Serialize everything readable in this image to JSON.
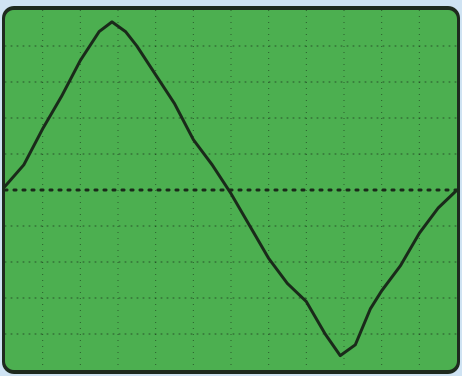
{
  "chart_data": {
    "type": "line",
    "x": [
      0,
      0.5,
      1,
      1.5,
      2,
      2.5,
      2.84,
      3.2,
      3.5,
      4,
      4.5,
      5,
      5.5,
      6,
      6.5,
      7,
      7.5,
      8,
      8.5,
      8.9,
      9.3,
      9.7,
      10,
      10.5,
      11,
      11.5,
      12
    ],
    "series": [
      {
        "color": "#1a2a1a",
        "values": [
          0.1,
          0.7,
          1.7,
          2.6,
          3.6,
          4.4,
          4.67,
          4.4,
          4.0,
          3.2,
          2.4,
          1.4,
          0.7,
          -0.1,
          -1.0,
          -1.9,
          -2.6,
          -3.1,
          -4.0,
          -4.6,
          -4.3,
          -3.3,
          -2.8,
          -2.1,
          -1.2,
          -0.5,
          0.0
        ]
      }
    ],
    "xlim": [
      0,
      12
    ],
    "ylim": [
      -5,
      5
    ],
    "xticks": [
      1,
      2,
      3,
      4,
      5,
      6,
      7,
      8,
      9,
      10,
      11
    ],
    "yticks": [
      -4,
      -3,
      -2,
      -1,
      0,
      1,
      2,
      3,
      4
    ],
    "grid": true,
    "zero_line": true,
    "background": "#4caf50"
  }
}
